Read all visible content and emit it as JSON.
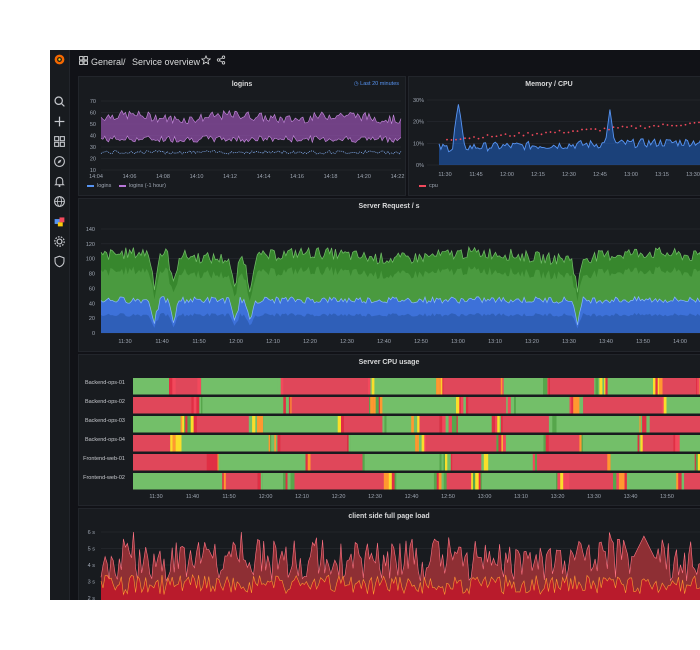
{
  "topbar": {
    "breadcrumb_root": "General",
    "breadcrumb_sep": "/",
    "breadcrumb_page": "Service overview"
  },
  "sidebar": {
    "icons": [
      "grafana-logo-icon",
      "search-icon",
      "plus-icon",
      "dashboards-icon",
      "explore-icon",
      "alert-bell-icon",
      "globe-icon",
      "plugins-icon",
      "gear-icon",
      "shield-icon"
    ]
  },
  "colors": {
    "green": "#73bf69",
    "blue": "#5794f2",
    "purple": "#b877d9",
    "red": "#f2495c",
    "orange": "#ff9830",
    "bg": "#181b1f"
  },
  "panels": {
    "logins": {
      "title": "logins",
      "time_info": "Last 20 minutes",
      "legend": [
        {
          "name": "logins",
          "color": "#5794f2"
        },
        {
          "name": "logins (-1 hour)",
          "color": "#b877d9"
        }
      ],
      "chart_data": {
        "type": "line",
        "y_ticks": [
          "70",
          "60",
          "50",
          "40",
          "30",
          "20",
          "10"
        ],
        "x_ticks": [
          "14:04",
          "14:06",
          "14:08",
          "14:10",
          "14:12",
          "14:14",
          "14:16",
          "14:18",
          "14:20",
          "14:22"
        ],
        "ylim": [
          10,
          70
        ],
        "series": [
          {
            "name": "logins",
            "range": [
              23,
              28
            ]
          },
          {
            "name": "logins (-1 hour)",
            "range": [
              45,
              60
            ]
          }
        ]
      }
    },
    "memory_cpu": {
      "title": "Memory / CPU",
      "legend": [
        {
          "name": "cpu",
          "color": "#f2495c"
        }
      ],
      "chart_data": {
        "type": "line",
        "y_ticks": [
          "30%",
          "20%",
          "10%",
          "0%"
        ],
        "x_ticks": [
          "11:30",
          "11:45",
          "12:00",
          "12:15",
          "12:30",
          "12:45",
          "13:00",
          "13:15",
          "13:30"
        ],
        "ylim": [
          0,
          30
        ]
      }
    },
    "server_requests": {
      "title": "Server Request / s",
      "chart_data": {
        "type": "area",
        "y_ticks": [
          "140",
          "120",
          "100",
          "80",
          "60",
          "40",
          "20",
          "0"
        ],
        "x_ticks": [
          "11:30",
          "11:40",
          "11:50",
          "12:00",
          "12:10",
          "12:20",
          "12:30",
          "12:40",
          "12:50",
          "13:00",
          "13:10",
          "13:20",
          "13:30",
          "13:40",
          "13:50",
          "14:00"
        ],
        "ylim": [
          0,
          140
        ]
      }
    },
    "cpu_usage": {
      "title": "Server CPU usage",
      "rows": [
        "Backend-ops-01",
        "Backend-ops-02",
        "Backend-ops-03",
        "Backend-ops-04",
        "Frontend-web-01",
        "Frontend-web-02"
      ],
      "chart_data": {
        "type": "heatmap",
        "x_ticks": [
          "11:30",
          "11:40",
          "11:50",
          "12:00",
          "12:10",
          "12:20",
          "12:30",
          "12:40",
          "12:50",
          "13:00",
          "13:10",
          "13:20",
          "13:30",
          "13:40",
          "13:50"
        ]
      }
    },
    "page_load": {
      "title": "client side full page load",
      "chart_data": {
        "type": "area",
        "y_ticks": [
          "6 s",
          "5 s",
          "4 s",
          "3 s",
          "2 s"
        ],
        "ylim": [
          2,
          6
        ]
      }
    }
  }
}
